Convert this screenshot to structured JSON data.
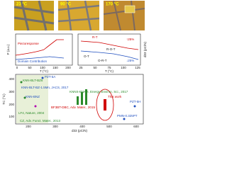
{
  "micrographs": [
    {
      "label": "23 °C"
    },
    {
      "label": "90 °C"
    },
    {
      "label": "170 °C"
    }
  ],
  "left_plot": {
    "y_label": "P (a.u.)",
    "x_label": "T (°C)",
    "annotations": [
      "Piezoresponse",
      "Domain Contribution"
    ],
    "xticks": [
      "0",
      "50",
      "100",
      "150",
      "200"
    ]
  },
  "right_plot": {
    "y_label": "d33 (pC/N)",
    "x_label": "T (°C)",
    "annotations": [
      "R-T",
      "O-T",
      "R-O-T",
      "O-R-T",
      "↑25%",
      "↓25%"
    ],
    "xticks": [
      "25",
      "50",
      "75",
      "100",
      "125"
    ]
  },
  "scatter": {
    "y_label": "TC (°C)",
    "x_label": "d33 (pC/N)",
    "xticks": [
      "200",
      "300",
      "400",
      "500",
      "600"
    ],
    "yticks": [
      "100",
      "200",
      "300",
      "400"
    ],
    "labels": [
      "PZT-5A",
      "KNN-BLT-BZ6",
      "KNN-BLT-BZ-1.5Mn, JACS, 2017",
      "KNNS-BNKH, Energy Environ. Sci., 2017",
      "KNN-BNZ",
      "BF3BT-DBC, Adv. Mater., 2015",
      "LF4, Nature, 2004",
      "This work",
      "PZT-5H",
      "CZ, Adv. Funct. Mater., 2013",
      "PMN-0.325PT"
    ]
  }
}
